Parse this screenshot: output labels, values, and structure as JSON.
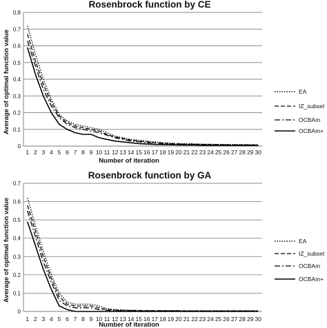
{
  "chart_data": [
    {
      "type": "line",
      "title": "Rosenbrock function by CE",
      "xlabel": "Number of iteration",
      "ylabel": "Average of optimal function value",
      "ylim": [
        0,
        0.8
      ],
      "yticks": [
        "0",
        "0.1",
        "0.2",
        "0.3",
        "0.4",
        "0.5",
        "0.6",
        "0.7",
        "0.8"
      ],
      "grid": true,
      "legend_position": "right",
      "x": [
        1,
        2,
        3,
        4,
        5,
        6,
        7,
        8,
        9,
        10,
        11,
        12,
        13,
        14,
        15,
        16,
        17,
        18,
        19,
        20,
        21,
        22,
        23,
        24,
        25,
        26,
        27,
        28,
        29,
        30
      ],
      "series": [
        {
          "name": "EA",
          "style": "dotted",
          "values": [
            0.72,
            0.55,
            0.4,
            0.28,
            0.19,
            0.15,
            0.13,
            0.12,
            0.11,
            0.1,
            0.08,
            0.06,
            0.05,
            0.04,
            0.035,
            0.03,
            0.025,
            0.02,
            0.018,
            0.015,
            0.014,
            0.013,
            0.012,
            0.011,
            0.01,
            0.01,
            0.009,
            0.009,
            0.008,
            0.008
          ]
        },
        {
          "name": "IZ_subset",
          "style": "dashed",
          "values": [
            0.67,
            0.51,
            0.37,
            0.26,
            0.18,
            0.14,
            0.12,
            0.11,
            0.1,
            0.09,
            0.07,
            0.055,
            0.045,
            0.035,
            0.03,
            0.025,
            0.02,
            0.018,
            0.015,
            0.013,
            0.012,
            0.011,
            0.01,
            0.009,
            0.009,
            0.008,
            0.008,
            0.007,
            0.007,
            0.007
          ]
        },
        {
          "name": "OCBAm",
          "style": "dashdot",
          "values": [
            0.63,
            0.48,
            0.34,
            0.24,
            0.17,
            0.13,
            0.11,
            0.1,
            0.09,
            0.08,
            0.065,
            0.05,
            0.04,
            0.03,
            0.025,
            0.02,
            0.018,
            0.015,
            0.013,
            0.011,
            0.01,
            0.009,
            0.008,
            0.008,
            0.007,
            0.007,
            0.006,
            0.006,
            0.006,
            0.005
          ]
        },
        {
          "name": "OCBAm+",
          "style": "solid",
          "values": [
            0.59,
            0.43,
            0.3,
            0.2,
            0.13,
            0.1,
            0.08,
            0.07,
            0.07,
            0.05,
            0.04,
            0.03,
            0.025,
            0.02,
            0.015,
            0.012,
            0.01,
            0.009,
            0.008,
            0.007,
            0.006,
            0.006,
            0.005,
            0.005,
            0.005,
            0.004,
            0.004,
            0.004,
            0.004,
            0.004
          ]
        }
      ]
    },
    {
      "type": "line",
      "title": "Rosenbrock function by GA",
      "xlabel": "Number of iteration",
      "ylabel": "Average of optimal function value",
      "ylim": [
        0,
        0.7
      ],
      "yticks": [
        "0",
        "0.1",
        "0.2",
        "0.3",
        "0.4",
        "0.5",
        "0.6",
        "0.7"
      ],
      "grid": true,
      "legend_position": "right",
      "x": [
        1,
        2,
        3,
        4,
        5,
        6,
        7,
        8,
        9,
        10,
        11,
        12,
        13,
        14,
        15,
        16,
        17,
        18,
        19,
        20,
        21,
        22,
        23,
        24,
        25,
        26,
        27,
        28,
        29,
        30
      ],
      "series": [
        {
          "name": "EA",
          "style": "dotted",
          "values": [
            0.62,
            0.47,
            0.33,
            0.2,
            0.1,
            0.05,
            0.04,
            0.04,
            0.04,
            0.03,
            0.015,
            0.01,
            0.008,
            0.007,
            0.006,
            0.005,
            0.005,
            0.005,
            0.005,
            0.004,
            0.004,
            0.004,
            0.004,
            0.004,
            0.004,
            0.004,
            0.004,
            0.004,
            0.004,
            0.004
          ]
        },
        {
          "name": "IZ_subset",
          "style": "dashed",
          "values": [
            0.58,
            0.44,
            0.3,
            0.18,
            0.08,
            0.04,
            0.03,
            0.03,
            0.03,
            0.02,
            0.01,
            0.008,
            0.006,
            0.005,
            0.005,
            0.004,
            0.004,
            0.004,
            0.004,
            0.004,
            0.003,
            0.003,
            0.003,
            0.003,
            0.003,
            0.003,
            0.003,
            0.003,
            0.003,
            0.003
          ]
        },
        {
          "name": "OCBAm",
          "style": "dashdot",
          "values": [
            0.55,
            0.41,
            0.27,
            0.16,
            0.06,
            0.03,
            0.02,
            0.02,
            0.02,
            0.01,
            0.006,
            0.005,
            0.004,
            0.004,
            0.003,
            0.003,
            0.003,
            0.003,
            0.003,
            0.003,
            0.002,
            0.002,
            0.002,
            0.002,
            0.002,
            0.002,
            0.002,
            0.002,
            0.002,
            0.002
          ]
        },
        {
          "name": "OCBAm+",
          "style": "solid",
          "values": [
            0.49,
            0.36,
            0.23,
            0.12,
            0.03,
            0.01,
            0.0,
            0.0,
            0.0,
            0.0,
            0.0,
            0.0,
            0.0,
            0.0,
            0.0,
            0.0,
            0.0,
            0.0,
            0.0,
            0.0,
            0.0,
            0.0,
            0.0,
            0.0,
            0.0,
            0.0,
            0.0,
            0.0,
            0.0,
            0.0
          ]
        }
      ]
    }
  ]
}
